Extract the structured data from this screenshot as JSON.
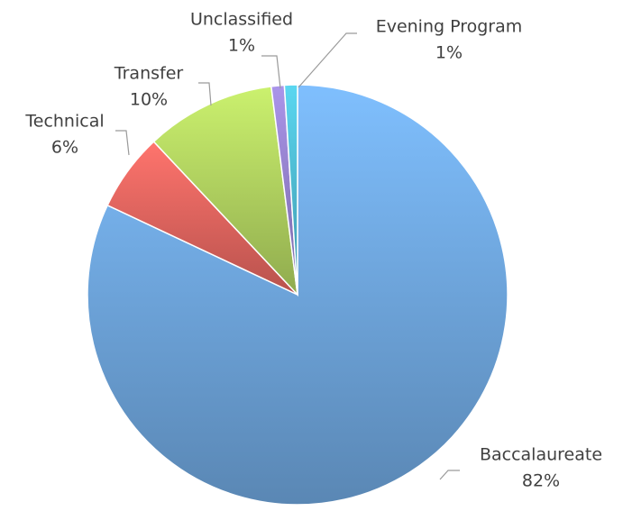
{
  "chart_data": {
    "type": "pie",
    "categories": [
      "Baccalaureate",
      "Technical",
      "Transfer",
      "Unclassified",
      "Evening Program"
    ],
    "values": [
      82,
      6,
      10,
      1,
      1
    ],
    "value_labels": [
      "82%",
      "6%",
      "10%",
      "1%",
      "1%"
    ],
    "colors": [
      "#6a9fd4",
      "#d9615b",
      "#a9c95c",
      "#8e7cc3",
      "#4bb3c9"
    ]
  }
}
